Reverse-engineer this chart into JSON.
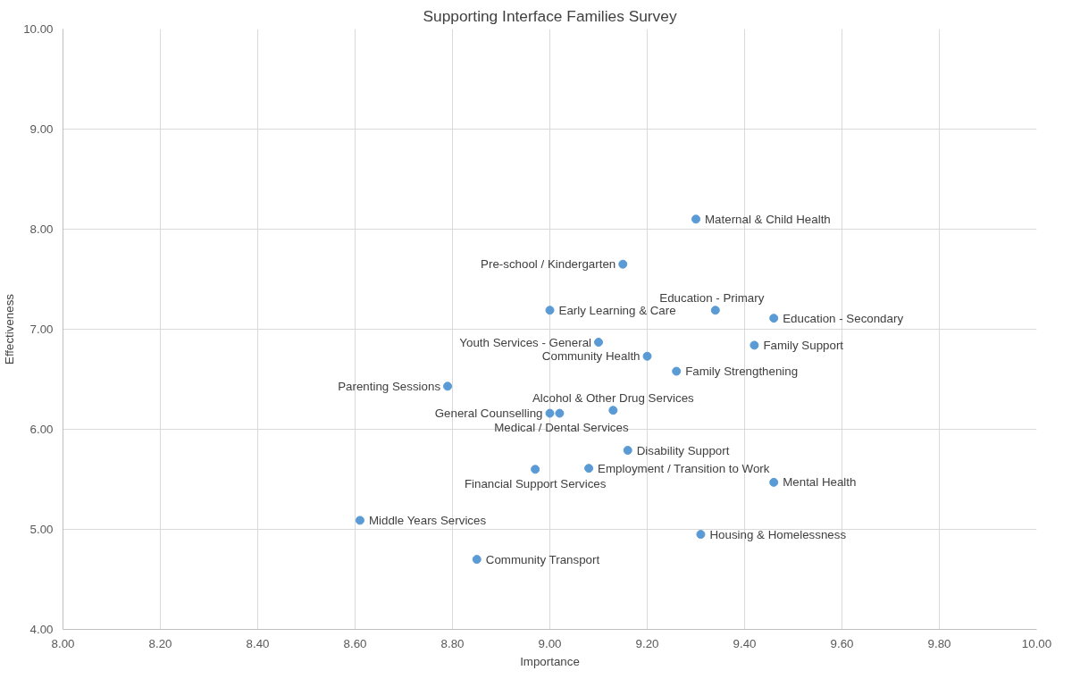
{
  "chart_data": {
    "type": "scatter",
    "title": "Supporting Interface Families Survey",
    "xlabel": "Importance",
    "ylabel": "Effectiveness",
    "x": [
      9.3,
      9.15,
      9.0,
      9.34,
      9.46,
      9.1,
      9.42,
      9.2,
      9.26,
      8.79,
      9.13,
      9.0,
      9.02,
      9.16,
      9.08,
      8.97,
      9.46,
      8.61,
      9.31,
      8.85
    ],
    "series": [
      {
        "color": "#5b9bd5",
        "values": [
          8.1,
          7.65,
          7.19,
          7.19,
          7.11,
          6.87,
          6.84,
          6.73,
          6.58,
          6.43,
          6.19,
          6.16,
          6.16,
          5.79,
          5.61,
          5.6,
          5.47,
          5.09,
          4.95,
          4.7
        ]
      }
    ],
    "annotations": [
      {
        "text": "Maternal & Child Health",
        "x": 9.3,
        "y": 8.1
      },
      {
        "text": "Pre-school / Kindergarten",
        "x": 9.15,
        "y": 7.65
      },
      {
        "text": "Early Learning & Care",
        "x": 9.0,
        "y": 7.19
      },
      {
        "text": "Education - Primary",
        "x": 9.34,
        "y": 7.19
      },
      {
        "text": "Education - Secondary",
        "x": 9.46,
        "y": 7.11
      },
      {
        "text": "Youth Services - General",
        "x": 9.1,
        "y": 6.87
      },
      {
        "text": "Family Support",
        "x": 9.42,
        "y": 6.84
      },
      {
        "text": "Community Health",
        "x": 9.2,
        "y": 6.73
      },
      {
        "text": "Family Strengthening",
        "x": 9.26,
        "y": 6.58
      },
      {
        "text": "Parenting Sessions",
        "x": 8.79,
        "y": 6.43
      },
      {
        "text": "Alcohol & Other Drug Services",
        "x": 9.13,
        "y": 6.19
      },
      {
        "text": "General Counselling",
        "x": 9.0,
        "y": 6.16
      },
      {
        "text": "Medical / Dental Services",
        "x": 9.02,
        "y": 6.16
      },
      {
        "text": "Disability Support",
        "x": 9.16,
        "y": 5.79
      },
      {
        "text": "Employment / Transition to Work",
        "x": 9.08,
        "y": 5.61
      },
      {
        "text": "Financial Support Services",
        "x": 8.97,
        "y": 5.6
      },
      {
        "text": "Mental Health",
        "x": 9.46,
        "y": 5.47
      },
      {
        "text": "Middle Years Services",
        "x": 8.61,
        "y": 5.09
      },
      {
        "text": "Housing & Homelessness",
        "x": 9.31,
        "y": 4.95
      },
      {
        "text": "Community Transport",
        "x": 8.85,
        "y": 4.7
      }
    ],
    "xlim": [
      8,
      10
    ],
    "xticks": [
      {
        "value": 8,
        "label": "8.00"
      },
      {
        "value": 8.2,
        "label": "8.20"
      },
      {
        "value": 8.4,
        "label": "8.40"
      },
      {
        "value": 8.6,
        "label": "8.60"
      },
      {
        "value": 8.8,
        "label": "8.80"
      },
      {
        "value": 9,
        "label": "9.00"
      },
      {
        "value": 9.2,
        "label": "9.20"
      },
      {
        "value": 9.4,
        "label": "9.40"
      },
      {
        "value": 9.6,
        "label": "9.60"
      },
      {
        "value": 9.8,
        "label": "9.80"
      },
      {
        "value": 10,
        "label": "10.00"
      }
    ],
    "ylim": [
      4,
      10
    ],
    "yticks": [
      {
        "value": 4,
        "label": "4.00"
      },
      {
        "value": 5,
        "label": "5.00"
      },
      {
        "value": 6,
        "label": "6.00"
      },
      {
        "value": 7,
        "label": "7.00"
      },
      {
        "value": 8,
        "label": "8.00"
      },
      {
        "value": 9,
        "label": "9.00"
      },
      {
        "value": 10,
        "label": "10.00"
      }
    ],
    "grid": true,
    "marker": "circle"
  }
}
